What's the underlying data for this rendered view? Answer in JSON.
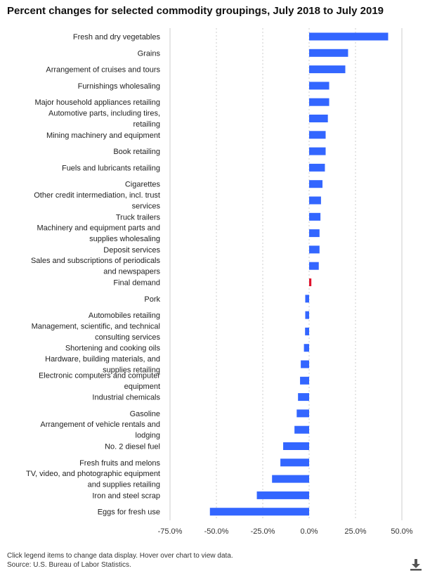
{
  "title": "Percent changes for selected commodity groupings, July 2018 to July 2019",
  "notes": {
    "instructions": "Click legend items to change data display. Hover over chart to view data.",
    "source": "Source: U.S. Bureau of Labor Statistics."
  },
  "icons": {
    "download": "download-icon"
  },
  "colors": {
    "positive": "#3366ff",
    "negative": "#3366ff",
    "highlight": "#e0142e",
    "grid": "#cccccc"
  },
  "chart_data": {
    "type": "bar",
    "orientation": "horizontal",
    "title": "Percent changes for selected commodity groupings, July 2018 to July 2019",
    "xlim": [
      -75,
      50
    ],
    "xticks": [
      -75,
      -50,
      -25,
      0,
      25,
      50
    ],
    "tick_labels": [
      "-75.0%",
      "-50.0%",
      "-25.0%",
      "0.0%",
      "25.0%",
      "50.0%"
    ],
    "grid": true,
    "categories": [
      [
        "Fresh and dry vegetables"
      ],
      [
        "Grains"
      ],
      [
        "Arrangement of cruises and tours"
      ],
      [
        "Furnishings wholesaling"
      ],
      [
        "Major household appliances retailing"
      ],
      [
        "Automotive parts, including tires,",
        "retailing"
      ],
      [
        "Mining machinery and equipment"
      ],
      [
        "Book retailing"
      ],
      [
        "Fuels and lubricants retailing"
      ],
      [
        "Cigarettes"
      ],
      [
        "Other credit intermediation, incl. trust",
        "services"
      ],
      [
        "Truck trailers"
      ],
      [
        "Machinery and equipment parts and",
        "supplies wholesaling"
      ],
      [
        "Deposit services"
      ],
      [
        "Sales and subscriptions of periodicals",
        "and newspapers"
      ],
      [
        "Final demand"
      ],
      [
        "Pork"
      ],
      [
        "Automobiles retailing"
      ],
      [
        "Management, scientific, and technical",
        "consulting services"
      ],
      [
        "Shortening and cooking oils"
      ],
      [
        "Hardware, building materials, and",
        "supplies retailing"
      ],
      [
        "Electronic computers and computer",
        "equipment"
      ],
      [
        "Industrial chemicals"
      ],
      [
        "Gasoline"
      ],
      [
        "Arrangement of vehicle rentals and",
        "lodging"
      ],
      [
        "No. 2 diesel fuel"
      ],
      [
        "Fresh fruits and melons"
      ],
      [
        "TV, video, and photographic equipment",
        "and supplies retailing"
      ],
      [
        "Iron and steel scrap"
      ],
      [
        "Eggs for fresh use"
      ]
    ],
    "values": [
      42.6,
      21.0,
      19.5,
      10.8,
      10.8,
      10.1,
      8.9,
      8.9,
      8.5,
      7.2,
      6.4,
      6.1,
      5.6,
      5.6,
      5.2,
      1.2,
      -2.1,
      -2.1,
      -2.2,
      -2.8,
      -4.5,
      -4.9,
      -6.0,
      -6.7,
      -7.9,
      -14.0,
      -15.5,
      -20.0,
      -28.2,
      -53.5
    ],
    "highlight_index": 15
  }
}
